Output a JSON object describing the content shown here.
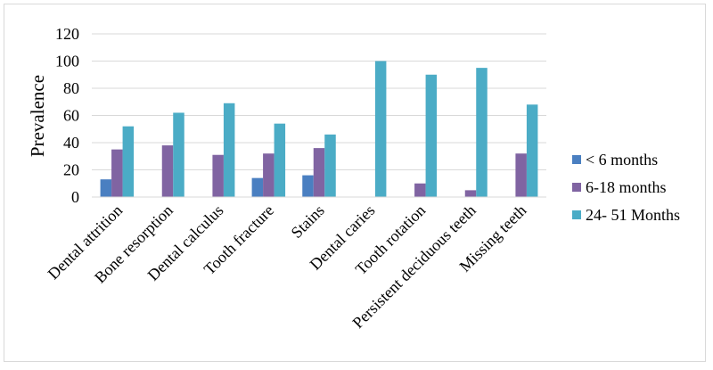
{
  "chart_data": {
    "type": "bar",
    "categories": [
      "Dental attrition",
      "Bone resorption",
      "Dental calculus",
      "Tooth fracture",
      "Stains",
      "Dental caries",
      "Tooth rotation",
      "Persistent deciduous teeth",
      "Missing teeth"
    ],
    "series": [
      {
        "name": "< 6 months",
        "color": "#4a7fc1",
        "values": [
          13,
          0,
          0,
          14,
          16,
          0,
          0,
          0,
          0
        ]
      },
      {
        "name": "6-18 months",
        "color": "#8064a2",
        "values": [
          35,
          38,
          31,
          32,
          36,
          0,
          10,
          5,
          32
        ]
      },
      {
        "name": "24- 51 Months",
        "color": "#4bacc6",
        "values": [
          52,
          62,
          69,
          54,
          46,
          100,
          90,
          95,
          68
        ]
      }
    ],
    "ylabel": "Prevalence",
    "xlabel": "",
    "ylim": [
      0,
      120
    ],
    "yticks": [
      0,
      20,
      40,
      60,
      80,
      100,
      120
    ],
    "grid": true,
    "legend_position": "right"
  }
}
